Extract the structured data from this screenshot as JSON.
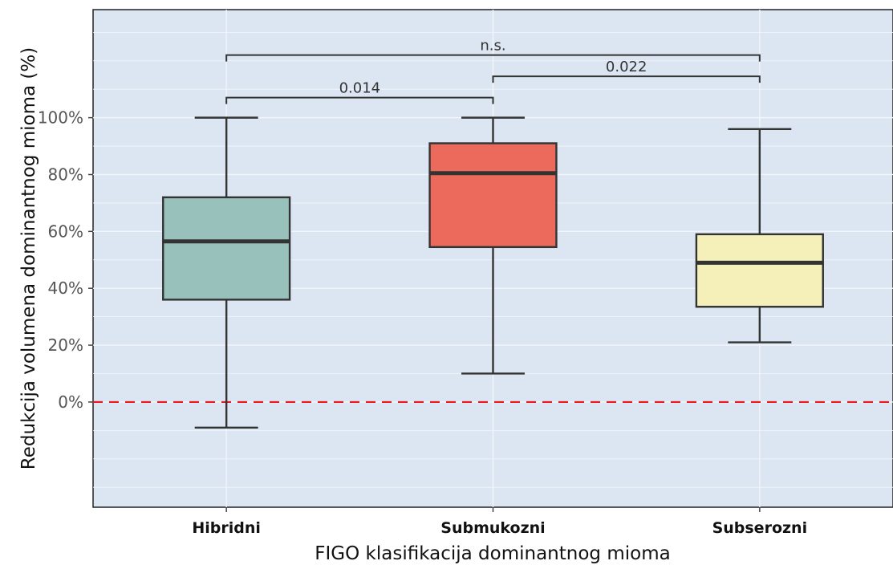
{
  "chart_data": {
    "type": "box",
    "title": "",
    "xlabel": "FIGO klasifikacija dominantnog mioma",
    "ylabel": "Redukcija volumena dominantnog mioma (%)",
    "ylim": [
      -37,
      138
    ],
    "yticks": [
      0,
      20,
      40,
      60,
      80,
      100
    ],
    "ytick_labels": [
      "0%",
      "20%",
      "40%",
      "60%",
      "80%",
      "100%"
    ],
    "grid": true,
    "reference_line": {
      "y": 0,
      "color": "#e8191f",
      "style": "dashed"
    },
    "categories": [
      "Hibridni",
      "Submukozni",
      "Subserozni"
    ],
    "boxes": [
      {
        "category": "Hibridni",
        "min": -9,
        "q1": 36,
        "median": 56.5,
        "q3": 72,
        "max": 100,
        "color": "#98c1bb"
      },
      {
        "category": "Submukozni",
        "min": 10,
        "q1": 54.5,
        "median": 80.5,
        "q3": 91,
        "max": 100,
        "color": "#ec6a5c"
      },
      {
        "category": "Subserozni",
        "min": 21,
        "q1": 33.5,
        "median": 49,
        "q3": 59,
        "max": 96,
        "color": "#f5f0b9"
      }
    ],
    "comparisons": [
      {
        "from": "Hibridni",
        "to": "Submukozni",
        "label": "0.014"
      },
      {
        "from": "Submukozni",
        "to": "Subserozni",
        "label": "0.022"
      },
      {
        "from": "Hibridni",
        "to": "Subserozni",
        "label": "n.s."
      }
    ],
    "colors": {
      "panel_background": "#dce6f2",
      "grid": "#f2f5fa",
      "box_stroke": "#333333"
    }
  }
}
